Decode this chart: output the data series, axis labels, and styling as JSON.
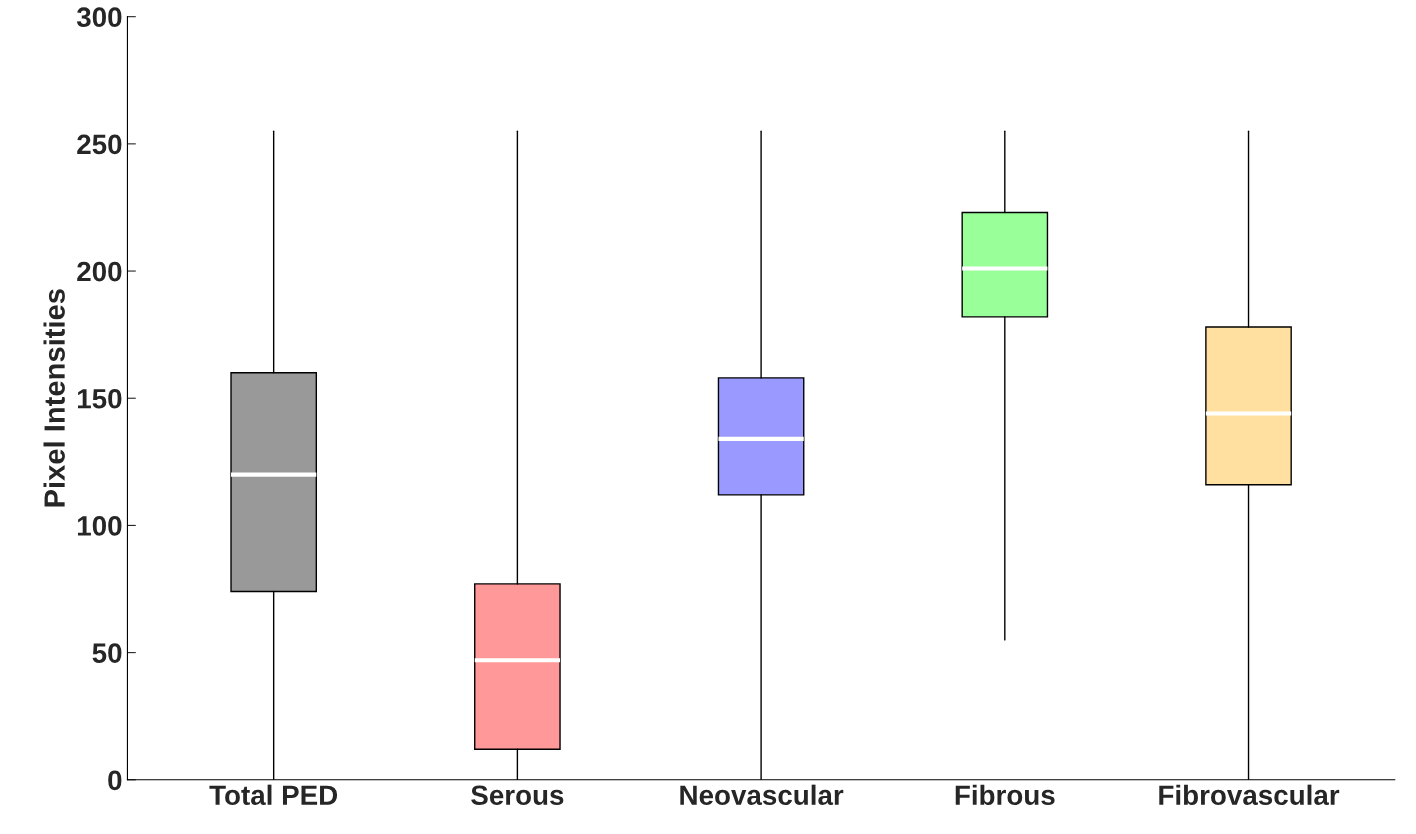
{
  "chart_data": {
    "type": "box",
    "ylabel": "Pixel Intensities",
    "categories": [
      "Total PED",
      "Serous",
      "Neovascular",
      "Fibrous",
      "Fibrovascular"
    ],
    "boxes": [
      {
        "low": 0,
        "q1": 74,
        "median": 120,
        "q3": 160,
        "high": 255
      },
      {
        "low": 0,
        "q1": 12,
        "median": 47,
        "q3": 77,
        "high": 255
      },
      {
        "low": 0,
        "q1": 112,
        "median": 134,
        "q3": 158,
        "high": 255
      },
      {
        "low": 55,
        "q1": 182,
        "median": 201,
        "q3": 223,
        "high": 255
      },
      {
        "low": 0,
        "q1": 116,
        "median": 144,
        "q3": 178,
        "high": 255
      }
    ],
    "colors": [
      "#999999",
      "#ff9999",
      "#9999ff",
      "#99ff99",
      "#ffe0a0"
    ],
    "ylim": [
      0,
      300
    ],
    "yticks": [
      0,
      50,
      100,
      150,
      200,
      250,
      300
    ],
    "grid": false
  }
}
